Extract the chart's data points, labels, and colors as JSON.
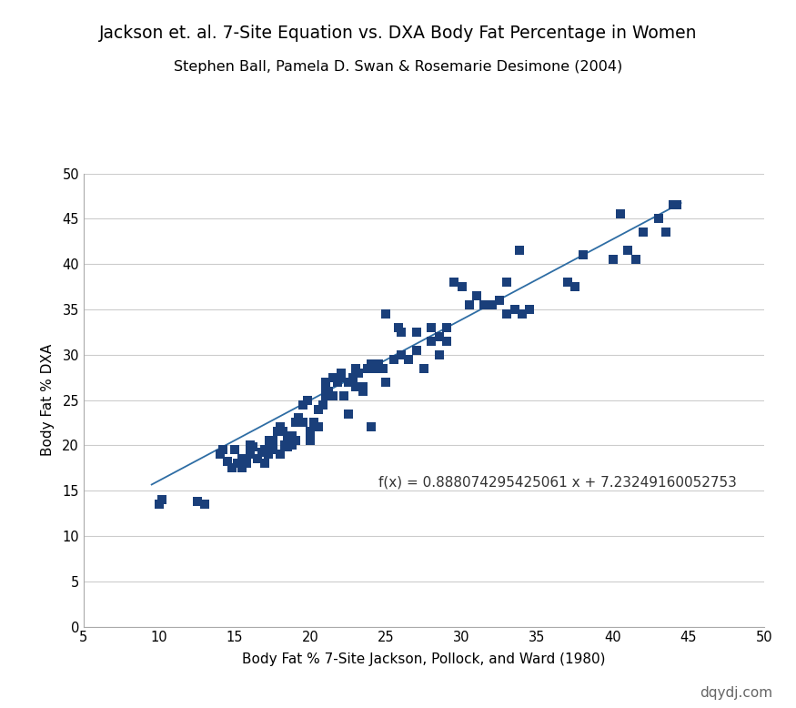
{
  "title": "Jackson et. al. 7-Site Equation vs. DXA Body Fat Percentage in Women",
  "subtitle": "Stephen Ball, Pamela D. Swan & Rosemarie Desimone (2004)",
  "xlabel": "Body Fat % 7-Site Jackson, Pollock, and Ward (1980)",
  "ylabel": "Body Fat % DXA",
  "watermark": "dqydj.com",
  "equation": "f(x) = 0.888074295425061 x + 7.23249160052753",
  "equation_x": 24.5,
  "equation_y": 15.5,
  "slope": 0.888074295425061,
  "intercept": 7.23249160052753,
  "line_xstart": 9.5,
  "line_xend": 44.5,
  "xlim": [
    5,
    50
  ],
  "ylim": [
    0,
    50
  ],
  "xticks": [
    5,
    10,
    15,
    20,
    25,
    30,
    35,
    40,
    45,
    50
  ],
  "yticks": [
    0,
    5,
    10,
    15,
    20,
    25,
    30,
    35,
    40,
    45,
    50
  ],
  "marker_color": "#1a3f7a",
  "line_color": "#2e6da4",
  "marker_size": 48,
  "scatter_x": [
    10.0,
    10.2,
    12.5,
    13.0,
    14.0,
    14.2,
    14.5,
    14.8,
    15.0,
    15.2,
    15.5,
    15.5,
    15.8,
    16.0,
    16.0,
    16.2,
    16.5,
    16.8,
    17.0,
    17.0,
    17.2,
    17.3,
    17.5,
    17.5,
    17.8,
    18.0,
    18.0,
    18.2,
    18.3,
    18.5,
    18.5,
    18.5,
    18.8,
    18.8,
    19.0,
    19.0,
    19.2,
    19.5,
    19.5,
    19.8,
    20.0,
    20.0,
    20.2,
    20.5,
    20.5,
    20.8,
    21.0,
    21.0,
    21.0,
    21.2,
    21.5,
    21.5,
    21.8,
    22.0,
    22.0,
    22.2,
    22.5,
    22.5,
    22.8,
    23.0,
    23.0,
    23.2,
    23.5,
    23.5,
    23.8,
    24.0,
    24.0,
    24.2,
    24.5,
    24.8,
    25.0,
    25.0,
    25.5,
    25.8,
    26.0,
    26.0,
    26.5,
    27.0,
    27.0,
    27.5,
    28.0,
    28.0,
    28.5,
    28.5,
    29.0,
    29.0,
    29.5,
    30.0,
    30.5,
    31.0,
    31.5,
    32.0,
    32.5,
    33.0,
    33.0,
    33.5,
    33.8,
    34.0,
    34.5,
    37.0,
    37.5,
    38.0,
    40.0,
    40.5,
    41.0,
    41.5,
    42.0,
    43.0,
    43.5,
    44.0,
    44.2
  ],
  "scatter_y": [
    13.5,
    14.0,
    13.8,
    13.5,
    19.0,
    19.5,
    18.2,
    17.5,
    19.5,
    18.0,
    17.5,
    18.5,
    18.0,
    20.0,
    19.0,
    19.8,
    18.5,
    19.2,
    18.0,
    19.5,
    19.0,
    20.5,
    20.5,
    19.5,
    21.5,
    22.0,
    19.0,
    21.5,
    20.0,
    19.8,
    21.0,
    20.5,
    21.0,
    20.0,
    22.5,
    20.5,
    23.0,
    22.5,
    24.5,
    25.0,
    20.5,
    21.5,
    22.5,
    24.0,
    22.0,
    24.5,
    27.0,
    26.5,
    25.5,
    26.0,
    25.5,
    27.5,
    27.0,
    27.5,
    28.0,
    25.5,
    27.0,
    23.5,
    27.5,
    28.5,
    26.5,
    28.0,
    26.5,
    26.0,
    28.5,
    29.0,
    22.0,
    28.5,
    29.0,
    28.5,
    34.5,
    27.0,
    29.5,
    33.0,
    32.5,
    30.0,
    29.5,
    30.5,
    32.5,
    28.5,
    31.5,
    33.0,
    32.0,
    30.0,
    33.0,
    31.5,
    38.0,
    37.5,
    35.5,
    36.5,
    35.5,
    35.5,
    36.0,
    34.5,
    38.0,
    35.0,
    41.5,
    34.5,
    35.0,
    38.0,
    37.5,
    41.0,
    40.5,
    45.5,
    41.5,
    40.5,
    43.5,
    45.0,
    43.5,
    46.5,
    46.5
  ]
}
